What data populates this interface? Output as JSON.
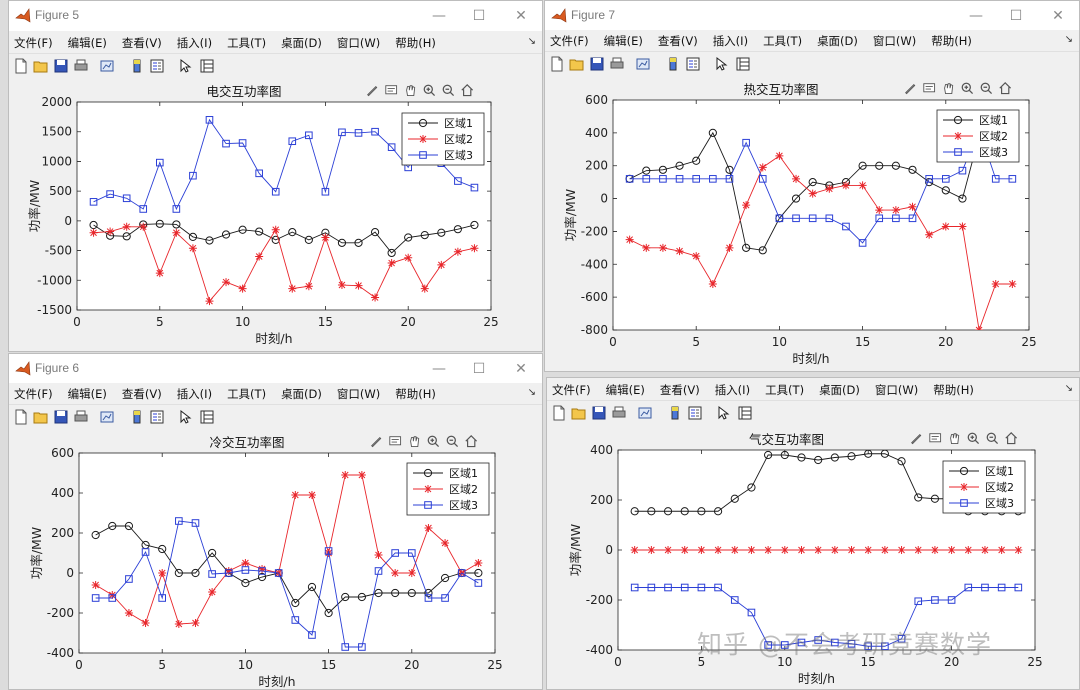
{
  "menus": [
    "文件(F)",
    "编辑(E)",
    "查看(V)",
    "插入(I)",
    "工具(T)",
    "桌面(D)",
    "窗口(W)",
    "帮助(H)"
  ],
  "menu_arrow": "↘",
  "window_buttons": {
    "minimize": "—",
    "maximize": "☐",
    "close": "✕"
  },
  "legend_labels": [
    "区域1",
    "区域2",
    "区域3"
  ],
  "series_colors": {
    "region1": "#1a1a1a",
    "region2": "#e8262b",
    "region3": "#2b3fd6"
  },
  "toolbar_icons": [
    "new-file-icon",
    "open-folder-icon",
    "save-icon",
    "print-icon",
    "link-plot-icon",
    "insert-colorbar-icon",
    "insert-legend-icon",
    "pointer-icon",
    "property-inspector-icon"
  ],
  "axes_toolbar_icons": [
    "brush-icon",
    "data-tip-icon",
    "pan-icon",
    "zoom-in-icon",
    "zoom-out-icon",
    "home-icon"
  ],
  "watermark": "知乎 @不会考研竞赛数学",
  "windows": [
    {
      "key": "fig5",
      "title": "Figure 5",
      "show_titlebar": true,
      "chart": {
        "title": "电交互功率图",
        "xlabel": "时刻/h",
        "ylabel": "功率/MW",
        "xlim": [
          0,
          25
        ],
        "ylim": [
          -1500,
          2000
        ],
        "xticks": [
          0,
          5,
          10,
          15,
          20,
          25
        ],
        "yticks": [
          -1500,
          -1000,
          -500,
          0,
          500,
          1000,
          1500,
          2000
        ]
      }
    },
    {
      "key": "fig7",
      "title": "Figure 7",
      "show_titlebar": true,
      "chart": {
        "title": "热交互功率图",
        "xlabel": "时刻/h",
        "ylabel": "功率/MW",
        "xlim": [
          0,
          25
        ],
        "ylim": [
          -800,
          600
        ],
        "xticks": [
          0,
          5,
          10,
          15,
          20,
          25
        ],
        "yticks": [
          -800,
          -600,
          -400,
          -200,
          0,
          200,
          400,
          600
        ]
      }
    },
    {
      "key": "fig6",
      "title": "Figure 6",
      "show_titlebar": true,
      "chart": {
        "title": "冷交互功率图",
        "xlabel": "时刻/h",
        "ylabel": "功率/MW",
        "xlim": [
          0,
          25
        ],
        "ylim": [
          -400,
          600
        ],
        "xticks": [
          0,
          5,
          10,
          15,
          20,
          25
        ],
        "yticks": [
          -400,
          -200,
          0,
          200,
          400,
          600
        ]
      }
    },
    {
      "key": "fig8",
      "title": "",
      "show_titlebar": false,
      "chart": {
        "title": "气交互功率图",
        "xlabel": "时刻/h",
        "ylabel": "功率/MW",
        "xlim": [
          0,
          25
        ],
        "ylim": [
          -400,
          400
        ],
        "xticks": [
          0,
          5,
          10,
          15,
          20,
          25
        ],
        "yticks": [
          -400,
          -200,
          0,
          200,
          400
        ]
      }
    }
  ],
  "chart_data": [
    {
      "type": "line",
      "title": "电交互功率图",
      "xlabel": "时刻/h",
      "ylabel": "功率/MW",
      "xlim": [
        0,
        25
      ],
      "ylim": [
        -1500,
        2000
      ],
      "grid": false,
      "legend_position": "top-right",
      "x": [
        1,
        2,
        3,
        4,
        5,
        6,
        7,
        8,
        9,
        10,
        11,
        12,
        13,
        14,
        15,
        16,
        17,
        18,
        19,
        20,
        21,
        22,
        23,
        24
      ],
      "series": [
        {
          "name": "区域1",
          "marker": "circle",
          "values": [
            -70,
            -250,
            -260,
            -60,
            -50,
            -60,
            -270,
            -330,
            -230,
            -150,
            -180,
            -320,
            -190,
            -320,
            -200,
            -370,
            -370,
            -190,
            -540,
            -280,
            -240,
            -200,
            -140,
            -70
          ]
        },
        {
          "name": "区域2",
          "marker": "star",
          "values": [
            -200,
            -180,
            -100,
            -100,
            -880,
            -200,
            -460,
            -1350,
            -1030,
            -1140,
            -600,
            -150,
            -1140,
            -1100,
            -280,
            -1080,
            -1090,
            -1290,
            -710,
            -620,
            -1140,
            -740,
            -520,
            -460
          ]
        },
        {
          "name": "区域3",
          "marker": "square",
          "values": [
            320,
            450,
            380,
            200,
            980,
            200,
            760,
            1700,
            1300,
            1310,
            800,
            490,
            1340,
            1440,
            490,
            1490,
            1480,
            1500,
            1240,
            900,
            1400,
            970,
            670,
            560
          ]
        }
      ]
    },
    {
      "type": "line",
      "title": "热交互功率图",
      "xlabel": "时刻/h",
      "ylabel": "功率/MW",
      "xlim": [
        0,
        25
      ],
      "ylim": [
        -800,
        600
      ],
      "grid": false,
      "legend_position": "top-right",
      "x": [
        1,
        2,
        3,
        4,
        5,
        6,
        7,
        8,
        9,
        10,
        11,
        12,
        13,
        14,
        15,
        16,
        17,
        18,
        19,
        20,
        21,
        22,
        23,
        24
      ],
      "series": [
        {
          "name": "区域1",
          "marker": "circle",
          "values": [
            120,
            170,
            175,
            200,
            230,
            400,
            175,
            -300,
            -315,
            -120,
            0,
            100,
            80,
            100,
            200,
            200,
            200,
            175,
            100,
            50,
            0,
            380,
            380,
            380
          ]
        },
        {
          "name": "区域2",
          "marker": "star",
          "values": [
            -250,
            -300,
            -300,
            -320,
            -350,
            -520,
            -300,
            -40,
            190,
            260,
            120,
            30,
            60,
            80,
            80,
            -70,
            -70,
            -50,
            -220,
            -170,
            -170,
            -800,
            -520,
            -520
          ]
        },
        {
          "name": "区域3",
          "marker": "square",
          "values": [
            120,
            120,
            120,
            120,
            120,
            120,
            120,
            340,
            120,
            -120,
            -120,
            -120,
            -120,
            -170,
            -270,
            -120,
            -120,
            -120,
            120,
            120,
            170,
            420,
            120,
            120
          ]
        }
      ]
    },
    {
      "type": "line",
      "title": "冷交互功率图",
      "xlabel": "时刻/h",
      "ylabel": "功率/MW",
      "xlim": [
        0,
        25
      ],
      "ylim": [
        -400,
        600
      ],
      "grid": false,
      "legend_position": "top-right",
      "x": [
        1,
        2,
        3,
        4,
        5,
        6,
        7,
        8,
        9,
        10,
        11,
        12,
        13,
        14,
        15,
        16,
        17,
        18,
        19,
        20,
        21,
        22,
        23,
        24
      ],
      "series": [
        {
          "name": "区域1",
          "marker": "circle",
          "values": [
            190,
            235,
            235,
            140,
            120,
            0,
            0,
            100,
            0,
            -50,
            -20,
            0,
            -150,
            -70,
            -200,
            -120,
            -120,
            -100,
            -100,
            -100,
            -100,
            -25,
            0,
            0
          ]
        },
        {
          "name": "区域2",
          "marker": "star",
          "values": [
            -60,
            -110,
            -200,
            -250,
            0,
            -255,
            -250,
            -95,
            10,
            50,
            20,
            0,
            390,
            390,
            100,
            490,
            490,
            90,
            0,
            0,
            225,
            150,
            0,
            50
          ]
        },
        {
          "name": "区域3",
          "marker": "square",
          "values": [
            -125,
            -125,
            -30,
            105,
            -125,
            260,
            250,
            -5,
            0,
            15,
            10,
            0,
            -235,
            -310,
            110,
            -370,
            -370,
            10,
            100,
            100,
            -125,
            -125,
            0,
            -50
          ]
        }
      ]
    },
    {
      "type": "line",
      "title": "气交互功率图",
      "xlabel": "时刻/h",
      "ylabel": "功率/MW",
      "xlim": [
        0,
        25
      ],
      "ylim": [
        -400,
        400
      ],
      "grid": false,
      "legend_position": "top-right",
      "x": [
        1,
        2,
        3,
        4,
        5,
        6,
        7,
        8,
        9,
        10,
        11,
        12,
        13,
        14,
        15,
        16,
        17,
        18,
        19,
        20,
        21,
        22,
        23,
        24
      ],
      "series": [
        {
          "name": "区域1",
          "marker": "circle",
          "values": [
            155,
            155,
            155,
            155,
            155,
            155,
            205,
            250,
            380,
            380,
            370,
            360,
            370,
            375,
            385,
            385,
            355,
            210,
            205,
            205,
            155,
            155,
            155,
            155
          ]
        },
        {
          "name": "区域2",
          "marker": "star",
          "values": [
            0,
            0,
            0,
            0,
            0,
            0,
            0,
            0,
            0,
            0,
            0,
            0,
            0,
            0,
            0,
            0,
            0,
            0,
            0,
            0,
            0,
            0,
            0,
            0
          ]
        },
        {
          "name": "区域3",
          "marker": "square",
          "values": [
            -150,
            -150,
            -150,
            -150,
            -150,
            -150,
            -200,
            -250,
            -380,
            -380,
            -370,
            -360,
            -370,
            -375,
            -385,
            -385,
            -355,
            -205,
            -200,
            -200,
            -150,
            -150,
            -150,
            -150
          ]
        }
      ]
    }
  ]
}
